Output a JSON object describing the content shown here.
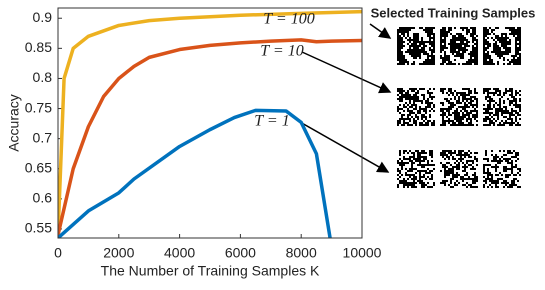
{
  "chart_data": {
    "type": "line",
    "xlabel": "The Number of Training Samples K",
    "ylabel": "Accuracy",
    "xlim": [
      0,
      10000
    ],
    "xticks": [
      0,
      2000,
      4000,
      6000,
      8000,
      10000
    ],
    "ylim": [
      0.535,
      0.917
    ],
    "yticks": [
      0.55,
      0.6,
      0.65,
      0.7,
      0.75,
      0.8,
      0.85,
      0.9
    ],
    "grid": false,
    "annotations": [
      "T = 100",
      "T = 10",
      "T = 1"
    ],
    "panel_title": "Selected Training Samples",
    "series": [
      {
        "color": "#EDB120",
        "x": [
          0,
          200,
          500,
          1000,
          2000,
          3000,
          4000,
          6000,
          8000,
          10000
        ],
        "values": [
          0.54,
          0.8,
          0.85,
          0.87,
          0.888,
          0.896,
          0.9,
          0.905,
          0.908,
          0.911
        ]
      },
      {
        "color": "#D95319",
        "x": [
          0,
          500,
          1000,
          1500,
          2000,
          2500,
          3000,
          4000,
          5000,
          6000,
          7000,
          8000,
          8500,
          9000,
          10000
        ],
        "values": [
          0.54,
          0.65,
          0.72,
          0.77,
          0.8,
          0.82,
          0.835,
          0.848,
          0.855,
          0.859,
          0.862,
          0.864,
          0.861,
          0.862,
          0.863
        ]
      },
      {
        "color": "#0072BD",
        "x": [
          0,
          1000,
          2000,
          2500,
          4000,
          5000,
          5800,
          6500,
          7500,
          8000,
          8500,
          8950
        ],
        "values": [
          0.535,
          0.58,
          0.61,
          0.633,
          0.687,
          0.715,
          0.735,
          0.747,
          0.746,
          0.727,
          0.675,
          0.535
        ]
      }
    ]
  }
}
